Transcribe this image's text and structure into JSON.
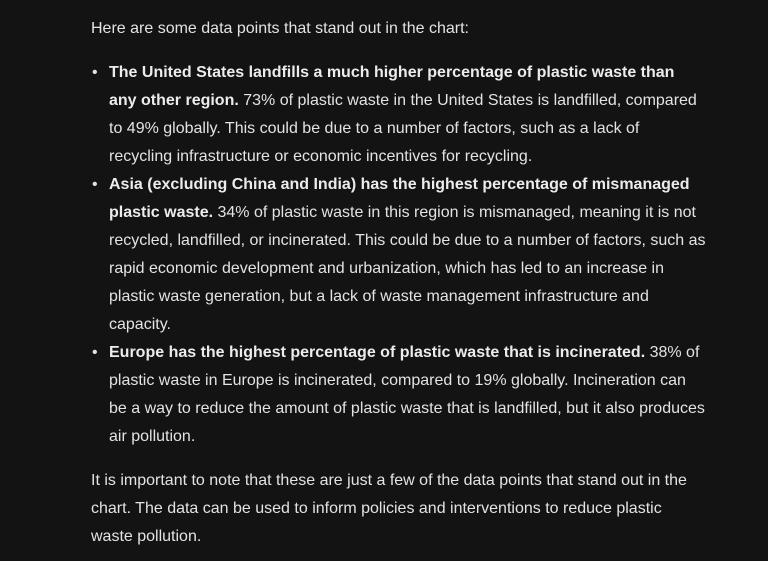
{
  "intro": "Here are some data points that stand out in the chart:",
  "bullets": [
    {
      "bold": "The United States landfills a much higher percentage of plastic waste than any other region.",
      "text": " 73% of plastic waste in the United States is landfilled, compared to 49% globally. This could be due to a number of factors, such as a lack of recycling infrastructure or economic incentives for recycling."
    },
    {
      "bold": "Asia (excluding China and India) has the highest percentage of mismanaged plastic waste.",
      "text": " 34% of plastic waste in this region is mismanaged, meaning it is not recycled, landfilled, or incinerated. This could be due to a number of factors, such as rapid economic development and urbanization, which has led to an increase in plastic waste generation, but a lack of waste management infrastructure and capacity."
    },
    {
      "bold": "Europe has the highest percentage of plastic waste that is incinerated.",
      "text": " 38% of plastic waste in Europe is incinerated, compared to 19% globally. Incineration can be a way to reduce the amount of plastic waste that is landfilled, but it also produces air pollution."
    }
  ],
  "conclusion": "It is important to note that these are just a few of the data points that stand out in the chart. The data can be used to inform policies and interventions to reduce plastic waste pollution."
}
